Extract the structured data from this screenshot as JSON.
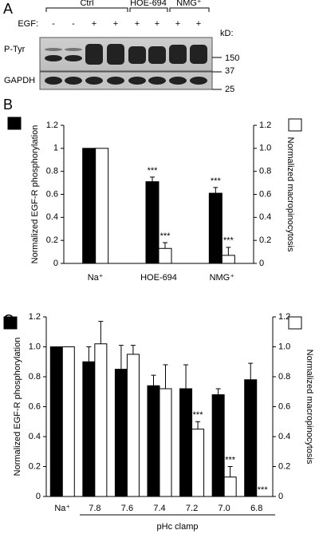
{
  "blot": {
    "panel_label": "A",
    "groups": [
      "Ctrl",
      "HOE-694",
      "NMG⁺"
    ],
    "egf_label": "EGF:",
    "egf_signs": [
      "-",
      "-",
      "+",
      "+",
      "+",
      "+",
      "+",
      "+"
    ],
    "kd_label": "kD:",
    "rows": [
      "P-Tyr",
      "GAPDH"
    ],
    "markers": [
      "150",
      "37",
      "25"
    ]
  },
  "chart_data": [
    {
      "type": "bar",
      "panel_label": "B",
      "ylabel": "Normalized EGF-R phosphorylation",
      "y2label": "Normalized macropinocytosis",
      "categories": [
        "Na⁺",
        "HOE-694",
        "NMG⁺"
      ],
      "series": [
        {
          "color": "#000000",
          "values": [
            1,
            0.71,
            0.61
          ],
          "errors": [
            0,
            0.04,
            0.05
          ],
          "annotations": [
            null,
            "***",
            "***"
          ]
        },
        {
          "color": "#ffffff",
          "axis": "y2",
          "values": [
            1,
            0.13,
            0.07
          ],
          "errors": [
            0,
            0.05,
            0.07
          ],
          "annotations": [
            null,
            "***",
            "***"
          ]
        }
      ],
      "ylim": [
        0,
        1.2
      ],
      "yticks": [
        0,
        0.2,
        0.4,
        0.6,
        0.8,
        1,
        1.2
      ],
      "y2lim": [
        0,
        1.2
      ],
      "y2ticks": [
        0,
        0.2,
        0.4,
        0.6,
        0.8,
        {
          "value": 1,
          "label": "1.0"
        },
        1.2
      ]
    },
    {
      "type": "bar",
      "panel_label": "C",
      "ylabel": "Normalized EGF-R phosphorylation",
      "y2label": "Normalized macropinocytosis",
      "xlabel": "pHc clamp",
      "categories": [
        "Na⁺",
        "7.8",
        "7.6",
        "7.4",
        "7.2",
        "7.0",
        "6.8"
      ],
      "series": [
        {
          "color": "#000000",
          "values": [
            1,
            0.9,
            0.85,
            0.74,
            0.72,
            0.68,
            0.78
          ],
          "errors": [
            0,
            0.1,
            0.16,
            0.07,
            0.16,
            0.04,
            0.11
          ],
          "annotations": [
            null,
            null,
            null,
            null,
            null,
            null,
            null
          ]
        },
        {
          "color": "#ffffff",
          "axis": "y2",
          "values": [
            1,
            1.02,
            0.95,
            0.72,
            0.45,
            0.13,
            0
          ],
          "errors": [
            0,
            0.15,
            0.06,
            0.16,
            0.05,
            0.07,
            0
          ],
          "annotations": [
            null,
            null,
            null,
            null,
            "***",
            "***",
            "***"
          ]
        }
      ],
      "ylim": [
        0,
        1.2
      ],
      "yticks": [
        0,
        0.2,
        0.4,
        0.6,
        0.8,
        {
          "value": 1,
          "label": "1.0"
        },
        1.2
      ],
      "y2lim": [
        0,
        1.2
      ],
      "y2ticks": [
        0,
        0.2,
        0.4,
        0.6,
        0.8,
        {
          "value": 1,
          "label": "1.0"
        },
        1.2
      ]
    }
  ]
}
